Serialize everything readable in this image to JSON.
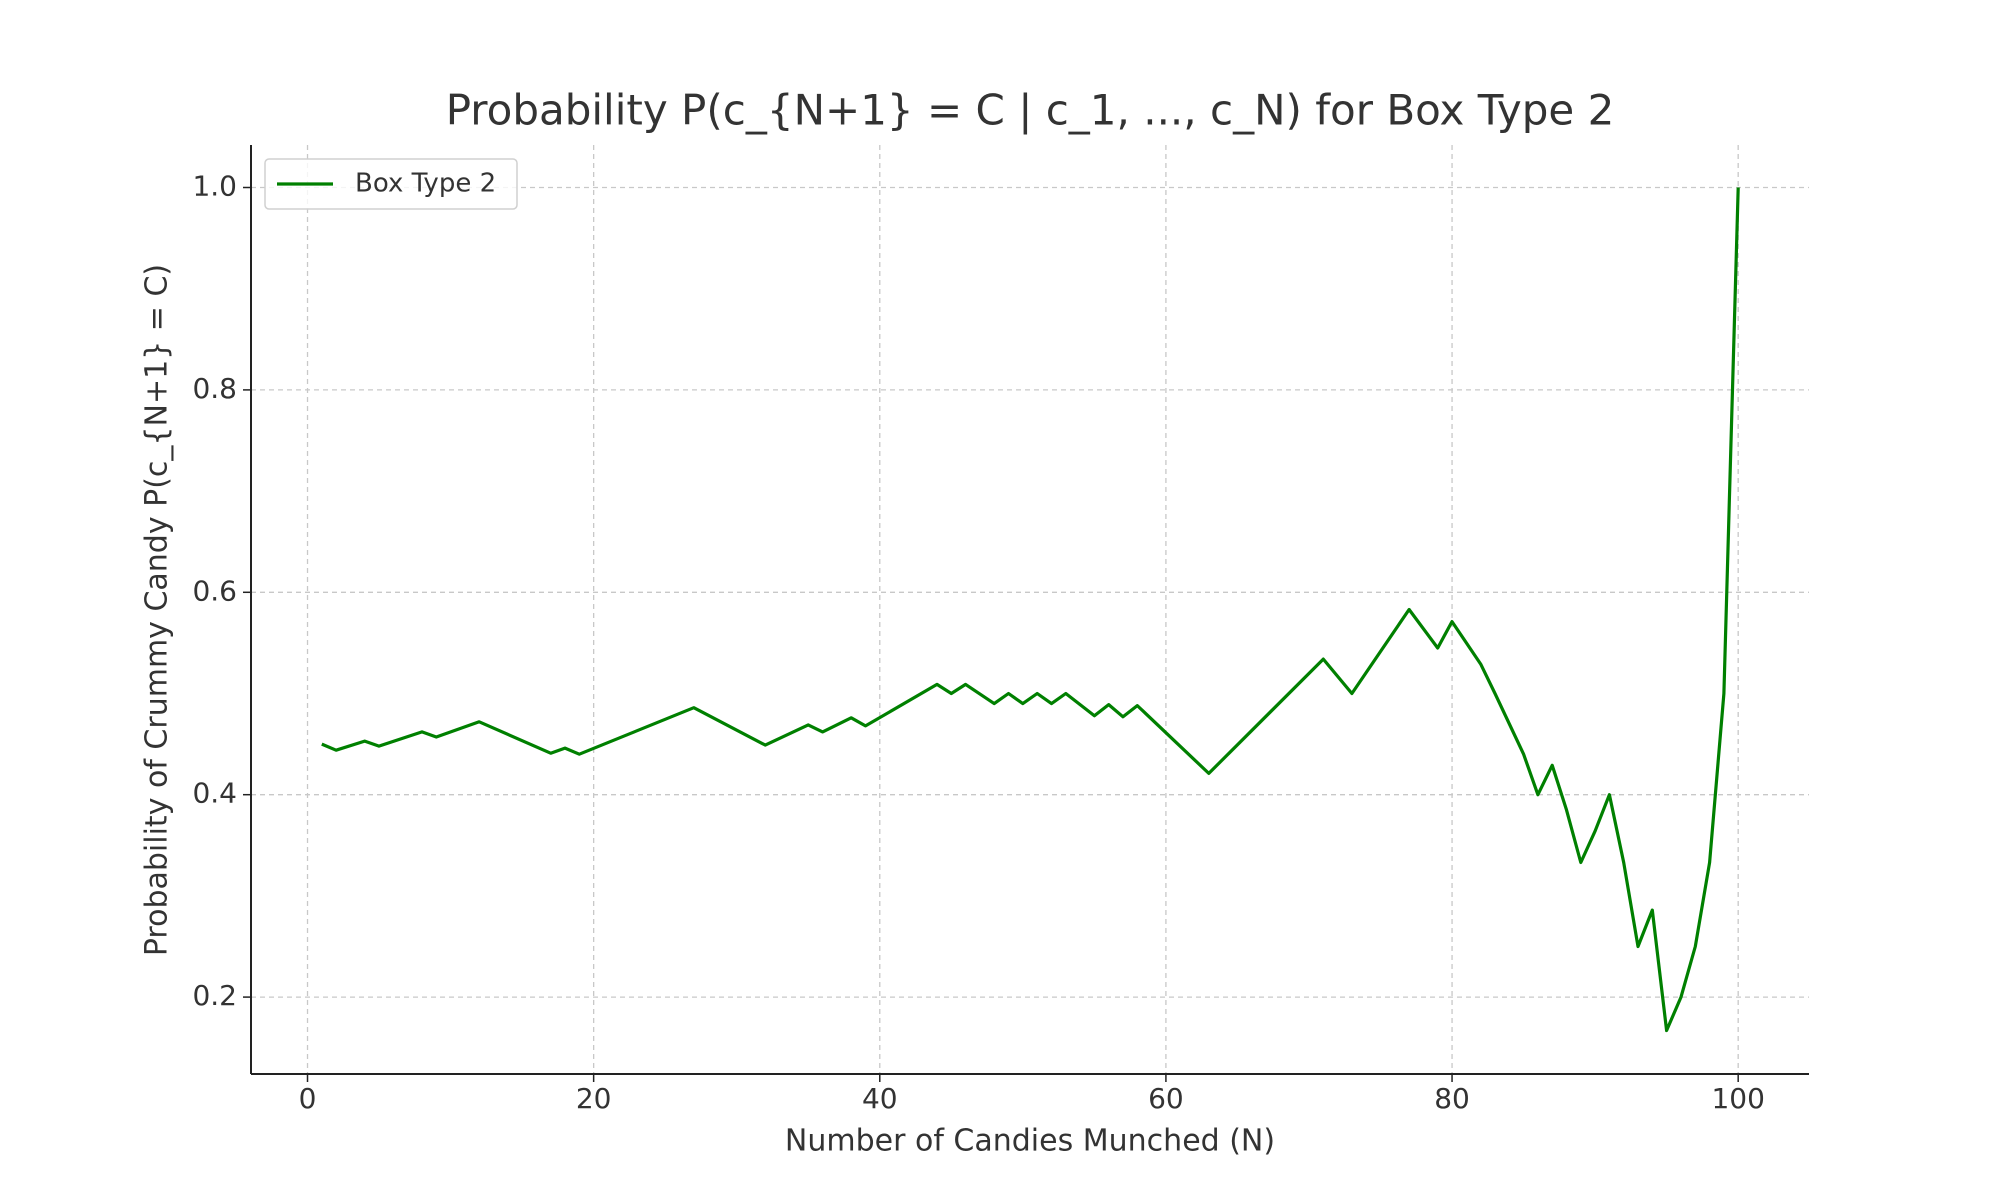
{
  "chart_data": {
    "type": "line",
    "title": "Probability P(c_{N+1} = C | c_1, ..., c_N) for Box Type 2",
    "xlabel": "Number of Candies Munched (N)",
    "ylabel": "Probability of Crummy Candy P(c_{N+1} = C)",
    "x": [
      1,
      2,
      4,
      5,
      8,
      9,
      12,
      17,
      18,
      19,
      27,
      32,
      35,
      36,
      38,
      39,
      44,
      45,
      46,
      48,
      49,
      50,
      51,
      52,
      53,
      55,
      56,
      57,
      58,
      63,
      71,
      73,
      77,
      79,
      80,
      82,
      83,
      85,
      86,
      87,
      88,
      89,
      90,
      91,
      92,
      93,
      94,
      95,
      96,
      97,
      98,
      99,
      100
    ],
    "series": [
      {
        "name": "Box Type 2",
        "color": "#008000",
        "values": [
          0.45,
          0.444,
          0.453,
          0.448,
          0.462,
          0.457,
          0.472,
          0.441,
          0.446,
          0.44,
          0.486,
          0.449,
          0.469,
          0.462,
          0.476,
          0.468,
          0.509,
          0.5,
          0.509,
          0.49,
          0.5,
          0.49,
          0.5,
          0.49,
          0.5,
          0.478,
          0.489,
          0.477,
          0.488,
          0.421,
          0.534,
          0.5,
          0.583,
          0.545,
          0.571,
          0.529,
          0.5,
          0.44,
          0.4,
          0.429,
          0.385,
          0.333,
          0.364,
          0.4,
          0.333,
          0.25,
          0.286,
          0.167,
          0.2,
          0.25,
          0.333,
          0.5,
          1.0
        ]
      }
    ],
    "xlim": [
      -3.95,
      104.95
    ],
    "ylim": [
      0.124,
      1.042
    ],
    "xticks": [
      0,
      20,
      40,
      60,
      80,
      100
    ],
    "yticks": [
      0.2,
      0.4,
      0.6,
      0.8,
      {
        "value": 1,
        "label": "1.0"
      }
    ],
    "grid": true,
    "legend": "upper left"
  }
}
